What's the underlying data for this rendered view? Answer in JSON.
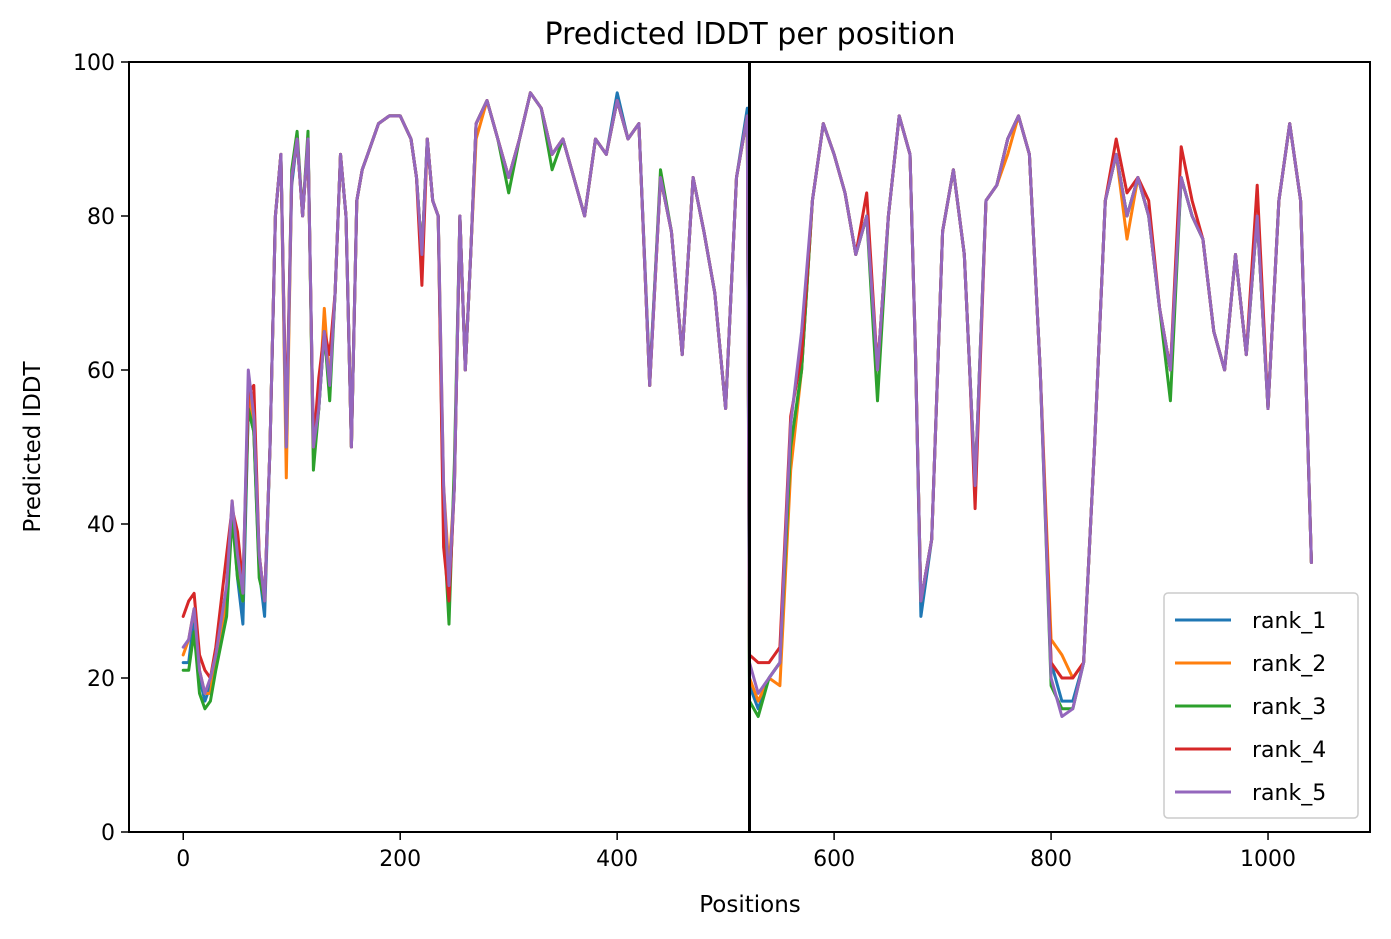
{
  "chart_data": {
    "type": "line",
    "title": "Predicted lDDT per position",
    "xlabel": "Positions",
    "ylabel": "Predicted lDDT",
    "xlim": [
      -50,
      1094
    ],
    "ylim": [
      0,
      100
    ],
    "xticks": [
      0,
      200,
      400,
      600,
      800,
      1000
    ],
    "yticks": [
      0,
      20,
      40,
      60,
      80,
      100
    ],
    "grid": false,
    "legend_position": "lower right",
    "chain_break": 522,
    "series_names": [
      "rank_1",
      "rank_2",
      "rank_3",
      "rank_4",
      "rank_5"
    ],
    "colors": [
      "#1f77b4",
      "#ff7f0e",
      "#2ca02c",
      "#d62728",
      "#9467bd"
    ],
    "x": [
      0,
      5,
      10,
      15,
      20,
      25,
      30,
      40,
      45,
      50,
      55,
      60,
      65,
      70,
      75,
      80,
      85,
      90,
      95,
      100,
      105,
      110,
      115,
      120,
      125,
      130,
      135,
      140,
      145,
      150,
      155,
      160,
      165,
      170,
      180,
      190,
      200,
      210,
      215,
      220,
      225,
      230,
      235,
      240,
      245,
      250,
      255,
      260,
      265,
      270,
      280,
      290,
      300,
      310,
      320,
      330,
      340,
      350,
      360,
      370,
      380,
      390,
      400,
      410,
      420,
      430,
      440,
      450,
      460,
      470,
      480,
      490,
      500,
      510,
      520,
      522,
      530,
      540,
      550,
      560,
      570,
      580,
      590,
      600,
      610,
      620,
      630,
      640,
      650,
      660,
      670,
      675,
      680,
      690,
      700,
      710,
      720,
      725,
      730,
      740,
      750,
      760,
      770,
      780,
      790,
      800,
      810,
      820,
      830,
      840,
      850,
      860,
      870,
      880,
      890,
      900,
      910,
      920,
      930,
      940,
      950,
      960,
      970,
      980,
      990,
      1000,
      1010,
      1020,
      1030,
      1040
    ],
    "base": [
      22,
      22,
      28,
      20,
      17,
      18,
      22,
      30,
      42,
      35,
      30,
      55,
      52,
      36,
      30,
      50,
      80,
      88,
      50,
      85,
      90,
      80,
      90,
      50,
      55,
      65,
      58,
      70,
      88,
      80,
      50,
      82,
      86,
      88,
      92,
      93,
      93,
      90,
      85,
      75,
      90,
      82,
      80,
      40,
      30,
      45,
      80,
      60,
      75,
      92,
      95,
      90,
      85,
      90,
      96,
      94,
      88,
      90,
      85,
      80,
      90,
      88,
      95,
      90,
      92,
      58,
      85,
      78,
      62,
      85,
      78,
      70,
      55,
      85,
      93,
      21,
      18,
      20,
      22,
      50,
      60,
      82,
      92,
      88,
      83,
      75,
      80,
      60,
      80,
      93,
      88,
      62,
      30,
      38,
      78,
      86,
      75,
      60,
      45,
      82,
      84,
      90,
      93,
      88,
      60,
      22,
      18,
      17,
      22,
      50,
      82,
      88,
      80,
      85,
      80,
      68,
      60,
      85,
      80,
      77,
      65,
      60,
      75,
      62,
      80,
      55,
      82,
      92,
      82,
      35
    ],
    "offsets": [
      [
        0,
        0,
        0,
        0,
        0,
        1,
        0,
        -1,
        0,
        -2,
        -3,
        0,
        0,
        -2,
        -2,
        0,
        0,
        0,
        0,
        -1,
        0,
        0,
        0,
        0,
        0,
        0,
        0,
        0,
        0,
        0,
        0,
        0,
        0,
        0,
        0,
        0,
        0,
        0,
        0,
        0,
        0,
        0,
        0,
        0,
        0,
        0,
        0,
        0,
        0,
        0,
        0,
        0,
        0,
        0,
        0,
        0,
        0,
        0,
        0,
        0,
        0,
        0,
        1,
        0,
        0,
        1,
        0,
        0,
        0,
        0,
        0,
        0,
        0,
        0,
        1,
        -2,
        -2,
        0,
        0,
        0,
        0,
        0,
        0,
        0,
        0,
        0,
        0,
        0,
        0,
        0,
        0,
        0,
        -2,
        0,
        0,
        0,
        0,
        0,
        0,
        0,
        0,
        0,
        0,
        0,
        0,
        0,
        -1,
        0,
        0,
        0,
        0,
        0,
        0,
        0,
        0,
        0,
        0,
        0,
        0,
        0,
        0,
        0,
        0,
        0,
        0,
        0,
        0,
        0,
        0,
        0
      ],
      [
        1,
        3,
        1,
        1,
        1,
        0,
        1,
        0,
        1,
        0,
        0,
        3,
        0,
        0,
        0,
        0,
        0,
        0,
        -4,
        0,
        0,
        0,
        0,
        -1,
        0,
        3,
        0,
        0,
        0,
        0,
        0,
        0,
        0,
        0,
        0,
        0,
        0,
        0,
        0,
        0,
        0,
        0,
        0,
        5,
        4,
        0,
        0,
        0,
        0,
        -2,
        0,
        0,
        0,
        0,
        0,
        0,
        0,
        0,
        0,
        0,
        0,
        0,
        0,
        0,
        0,
        0,
        0,
        0,
        0,
        0,
        0,
        0,
        0,
        0,
        0,
        -1,
        -1,
        0,
        -3,
        -3,
        0,
        0,
        0,
        0,
        0,
        0,
        0,
        0,
        0,
        0,
        0,
        0,
        0,
        0,
        0,
        0,
        0,
        0,
        0,
        0,
        0,
        -2,
        0,
        0,
        0,
        3,
        5,
        3,
        0,
        0,
        0,
        0,
        -3,
        0,
        0,
        0,
        0,
        0,
        0,
        0,
        0,
        0,
        0,
        0,
        0,
        0,
        0,
        0,
        0,
        0
      ],
      [
        -1,
        -1,
        -2,
        -2,
        -1,
        -1,
        -1,
        -2,
        -1,
        -2,
        0,
        0,
        0,
        -3,
        0,
        0,
        0,
        0,
        0,
        1,
        1,
        0,
        1,
        -3,
        0,
        0,
        -2,
        0,
        0,
        0,
        0,
        0,
        0,
        0,
        0,
        0,
        0,
        0,
        0,
        0,
        0,
        0,
        0,
        0,
        -3,
        3,
        0,
        0,
        0,
        0,
        0,
        0,
        -2,
        0,
        0,
        0,
        -2,
        0,
        0,
        0,
        0,
        0,
        0,
        0,
        0,
        0,
        1,
        0,
        0,
        0,
        0,
        0,
        0,
        0,
        0,
        -4,
        -3,
        0,
        0,
        0,
        0,
        0,
        0,
        0,
        0,
        0,
        0,
        -4,
        0,
        0,
        0,
        0,
        0,
        0,
        0,
        0,
        0,
        0,
        0,
        0,
        0,
        0,
        0,
        0,
        0,
        -3,
        -2,
        -1,
        0,
        0,
        0,
        0,
        0,
        0,
        0,
        0,
        -4,
        0,
        0,
        0,
        0,
        0,
        0,
        0,
        0,
        0,
        0,
        0,
        0,
        0
      ],
      [
        6,
        8,
        3,
        3,
        4,
        2,
        2,
        6,
        0,
        4,
        2,
        2,
        6,
        0,
        0,
        0,
        0,
        0,
        2,
        0,
        0,
        0,
        0,
        0,
        4,
        0,
        4,
        0,
        0,
        0,
        0,
        0,
        0,
        0,
        0,
        0,
        0,
        0,
        0,
        -4,
        0,
        0,
        0,
        -3,
        0,
        0,
        0,
        0,
        0,
        0,
        0,
        0,
        0,
        0,
        0,
        0,
        0,
        0,
        0,
        0,
        0,
        0,
        0,
        0,
        0,
        0,
        0,
        0,
        0,
        0,
        0,
        0,
        0,
        0,
        0,
        2,
        4,
        2,
        2,
        4,
        2,
        0,
        0,
        0,
        0,
        0,
        3,
        0,
        0,
        0,
        0,
        0,
        0,
        0,
        0,
        0,
        0,
        0,
        -3,
        0,
        0,
        0,
        0,
        0,
        0,
        0,
        2,
        3,
        0,
        0,
        0,
        2,
        3,
        0,
        2,
        0,
        0,
        4,
        2,
        0,
        0,
        0,
        0,
        0,
        4,
        0,
        0,
        0,
        0,
        0
      ],
      [
        2,
        3,
        1,
        1,
        1,
        2,
        1,
        2,
        1,
        1,
        1,
        5,
        2,
        0,
        0,
        0,
        0,
        0,
        0,
        0,
        0,
        0,
        0,
        0,
        0,
        0,
        0,
        0,
        0,
        0,
        0,
        0,
        0,
        0,
        0,
        0,
        0,
        0,
        0,
        0,
        0,
        0,
        0,
        5,
        2,
        0,
        0,
        0,
        0,
        0,
        0,
        0,
        0,
        0,
        0,
        0,
        0,
        0,
        0,
        0,
        0,
        0,
        0,
        0,
        0,
        0,
        0,
        0,
        0,
        0,
        0,
        0,
        0,
        0,
        0,
        1,
        0,
        0,
        0,
        3,
        5,
        0,
        0,
        0,
        0,
        0,
        0,
        0,
        0,
        0,
        0,
        0,
        0,
        0,
        0,
        0,
        0,
        0,
        0,
        0,
        0,
        0,
        0,
        0,
        0,
        -2,
        -3,
        -1,
        0,
        0,
        0,
        0,
        0,
        0,
        0,
        0,
        0,
        0,
        0,
        0,
        0,
        0,
        0,
        0,
        0,
        0,
        0,
        0,
        0,
        0
      ]
    ]
  }
}
